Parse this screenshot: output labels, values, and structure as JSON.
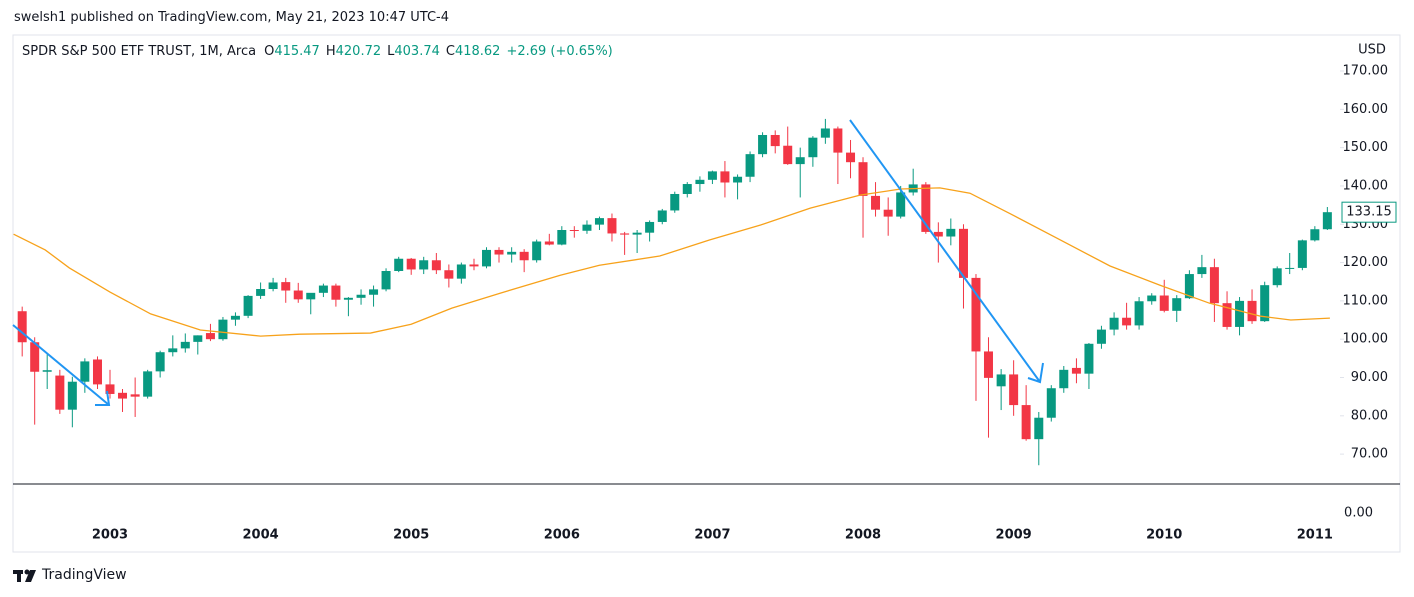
{
  "header": "swelsh1 published on TradingView.com, May 21, 2023 10:47 UTC-4",
  "footer": "TradingView",
  "chart_data": {
    "type": "candlestick",
    "symbol": "SPDR S&P 500 ETF TRUST, 1M, Arca",
    "ohlc_legend": {
      "o_label": "O",
      "open": 415.47,
      "h_label": "H",
      "high": 420.72,
      "l_label": "L",
      "low": 403.74,
      "c_label": "C",
      "close": 418.62,
      "change": "+2.69 (+0.65%)"
    },
    "currency": "USD",
    "up_color": "#089981",
    "down_color": "#f23645",
    "x": [
      2002.417,
      2002.5,
      2002.583,
      2002.667,
      2002.75,
      2002.833,
      2002.917,
      2003.0,
      2003.083,
      2003.167,
      2003.25,
      2003.333,
      2003.417,
      2003.5,
      2003.583,
      2003.667,
      2003.75,
      2003.833,
      2003.917,
      2004.0,
      2004.083,
      2004.167,
      2004.25,
      2004.333,
      2004.417,
      2004.5,
      2004.583,
      2004.667,
      2004.75,
      2004.833,
      2004.917,
      2005.0,
      2005.083,
      2005.167,
      2005.25,
      2005.333,
      2005.417,
      2005.5,
      2005.583,
      2005.667,
      2005.75,
      2005.833,
      2005.917,
      2006.0,
      2006.083,
      2006.167,
      2006.25,
      2006.333,
      2006.417,
      2006.5,
      2006.583,
      2006.667,
      2006.75,
      2006.833,
      2006.917,
      2007.0,
      2007.083,
      2007.167,
      2007.25,
      2007.333,
      2007.417,
      2007.5,
      2007.583,
      2007.667,
      2007.75,
      2007.833,
      2007.917,
      2008.0,
      2008.083,
      2008.167,
      2008.25,
      2008.333,
      2008.417,
      2008.5,
      2008.583,
      2008.667,
      2008.75,
      2008.833,
      2008.917,
      2009.0,
      2009.083,
      2009.167,
      2009.25,
      2009.333,
      2009.417,
      2009.5,
      2009.583,
      2009.667,
      2009.75,
      2009.833,
      2009.917,
      2010.0,
      2010.083,
      2010.167,
      2010.25,
      2010.333,
      2010.417,
      2010.5,
      2010.583,
      2010.667,
      2010.75,
      2010.833,
      2010.917,
      2011.0,
      2011.083
    ],
    "open": [
      107.3,
      99.2,
      91.5,
      90.5,
      81.6,
      88.9,
      94.7,
      88.2,
      86,
      85.6,
      85,
      91.6,
      96.6,
      97.6,
      99.3,
      101.6,
      100,
      105.1,
      106.1,
      111.3,
      113.1,
      114.9,
      112.7,
      110.4,
      112.1,
      114,
      110.3,
      110.8,
      111.6,
      113,
      117.8,
      121,
      118.2,
      120.6,
      118,
      115.8,
      119.5,
      119,
      123.3,
      122.1,
      122.8,
      120.6,
      125.5,
      124.7,
      128.5,
      128.3,
      129.9,
      131.6,
      127.6,
      127.3,
      127.8,
      130.6,
      133.6,
      137.9,
      140.5,
      141.6,
      143.8,
      140.9,
      142.4,
      148.3,
      153.3,
      150.5,
      145.7,
      147.5,
      152.6,
      155,
      148.7,
      146.2,
      137.4,
      133.8,
      132,
      138.3,
      140.4,
      128,
      126.8,
      128.8,
      116,
      96.8,
      87.7,
      90.8,
      82.8,
      73.9,
      79.5,
      87.2,
      92.5,
      91,
      98.8,
      102.5,
      105.6,
      103.6,
      109.9,
      111.4,
      107.4,
      110.7,
      117,
      118.8,
      109.4,
      103.2,
      110,
      104.7,
      114.1,
      118.5,
      118.6,
      125.8,
      128.7
    ],
    "high": [
      108.5,
      100.5,
      96,
      92,
      90.2,
      95,
      95.5,
      92,
      87,
      90,
      92,
      97,
      101,
      101.5,
      101,
      104,
      105.8,
      107,
      111.5,
      114.8,
      116,
      116,
      114.7,
      112,
      114.5,
      114.5,
      111,
      113,
      114,
      118.5,
      121.5,
      121.2,
      121.5,
      122.5,
      119.5,
      120,
      121,
      124,
      124,
      124,
      123.5,
      126,
      127.5,
      129.5,
      129.5,
      131,
      132,
      132.8,
      128,
      128.5,
      131,
      134,
      138.5,
      141,
      142.5,
      144,
      146.5,
      143,
      149,
      154,
      154.5,
      155.5,
      150,
      153,
      157.5,
      155.5,
      152,
      147.5,
      141,
      137,
      140,
      144.5,
      141,
      130.5,
      131.5,
      130,
      117,
      100.5,
      92.2,
      94.5,
      88,
      81,
      88,
      93,
      95,
      99,
      103.5,
      107,
      109.5,
      111,
      112,
      115.5,
      111.5,
      118,
      122,
      121,
      112.5,
      111,
      113,
      115,
      119,
      122.5,
      126,
      129.5,
      134.5
    ],
    "low": [
      95.5,
      77.7,
      87,
      80.5,
      77,
      86,
      87,
      84.5,
      81,
      79.7,
      84.5,
      90,
      95.5,
      96.5,
      96,
      99.5,
      99.6,
      103.5,
      105.5,
      110.5,
      112.5,
      109.5,
      109.5,
      106.5,
      111,
      108.5,
      106,
      109,
      108.5,
      112.5,
      117.5,
      116.8,
      117,
      117,
      113.5,
      114.5,
      118,
      118.5,
      120,
      120,
      117.5,
      120,
      124.5,
      124.5,
      126.5,
      127.5,
      128.5,
      125.5,
      122,
      122.5,
      125.5,
      130,
      133,
      137,
      138.5,
      140.5,
      137,
      136.5,
      141,
      147.5,
      148.5,
      145.5,
      137,
      145,
      151,
      140.5,
      142,
      126.5,
      132,
      127,
      131.5,
      137.5,
      127.5,
      120,
      124.5,
      108,
      83.9,
      74.3,
      81.5,
      80,
      73.5,
      67.1,
      78.5,
      86,
      88.5,
      87,
      97.5,
      101,
      102.5,
      102.5,
      109,
      107,
      104.5,
      110.5,
      116,
      104.5,
      102.5,
      101,
      104,
      104.5,
      113.5,
      117,
      118,
      125.5,
      128.5
    ],
    "close": [
      99.2,
      91.5,
      91.9,
      81.6,
      88.9,
      94.2,
      88.2,
      85.7,
      84.5,
      85,
      91.6,
      96.6,
      97.6,
      99.3,
      101,
      100,
      105.1,
      106.1,
      111.3,
      113.1,
      114.8,
      112.7,
      110.4,
      112.1,
      114,
      110.3,
      110.8,
      111.6,
      113,
      117.8,
      121,
      118.2,
      120.6,
      118,
      115.8,
      119.5,
      119,
      123.3,
      122.1,
      122.8,
      120.6,
      125.5,
      124.7,
      128.5,
      128.3,
      129.9,
      131.6,
      127.6,
      127.3,
      127.8,
      130.6,
      133.6,
      137.9,
      140.5,
      141.6,
      143.8,
      140.9,
      142.4,
      148.3,
      153.3,
      150.4,
      145.7,
      147.5,
      152.6,
      155,
      148.7,
      146.2,
      137.4,
      133.8,
      132,
      138.3,
      140.4,
      128,
      126.8,
      128.8,
      116,
      96.8,
      89.9,
      90.8,
      82.8,
      73.9,
      79.5,
      87.2,
      92,
      91,
      98.8,
      102.5,
      105.6,
      103.6,
      109.9,
      111.4,
      107.4,
      110.7,
      117,
      118.8,
      109.4,
      103.2,
      110,
      104.7,
      114.1,
      118.5,
      118.6,
      125.8,
      128.7,
      133.15
    ],
    "moving_average": {
      "color": "#f7a21b",
      "x": [
        2002.36,
        2002.57,
        2002.73,
        2003,
        2003.27,
        2003.6,
        2004,
        2004.26,
        2004.73,
        2005,
        2005.27,
        2005.59,
        2005.99,
        2006.25,
        2006.65,
        2006.98,
        2007.32,
        2007.65,
        2007.98,
        2008.25,
        2008.51,
        2008.71,
        2008.98,
        2009.31,
        2009.64,
        2009.97,
        2010.3,
        2010.64,
        2010.84,
        2011.1
      ],
      "values": [
        127.4,
        123.3,
        118.6,
        112.3,
        106.6,
        102.4,
        100.8,
        101.3,
        101.6,
        103.9,
        108.1,
        112,
        116.7,
        119.3,
        121.7,
        125.9,
        129.8,
        134.2,
        137.6,
        139.2,
        139.5,
        138.1,
        132.7,
        125.9,
        119.1,
        114.1,
        109.4,
        106,
        105,
        105.5
      ]
    },
    "xlim": [
      2002.356,
      2011.167
    ],
    "xticks": [
      2003,
      2004,
      2005,
      2006,
      2007,
      2008,
      2009,
      2010,
      2011
    ],
    "ylim": [
      62.2,
      179.4
    ],
    "yticks": [
      {
        "value": 70,
        "label": "70.00"
      },
      {
        "value": 80,
        "label": "80.00"
      },
      {
        "value": 90,
        "label": "90.00"
      },
      {
        "value": 100,
        "label": "100.00"
      },
      {
        "value": 110,
        "label": "110.00"
      },
      {
        "value": 120,
        "label": "120.00"
      },
      {
        "value": 130,
        "label": "130.00"
      },
      {
        "value": 140,
        "label": "140.00"
      },
      {
        "value": 150,
        "label": "150.00"
      },
      {
        "value": 160,
        "label": "160.00"
      },
      {
        "value": 170,
        "label": "170.00"
      }
    ],
    "last_price": 133.15,
    "pane2_ticks": [
      {
        "value": 0,
        "label": "0.00"
      }
    ]
  }
}
